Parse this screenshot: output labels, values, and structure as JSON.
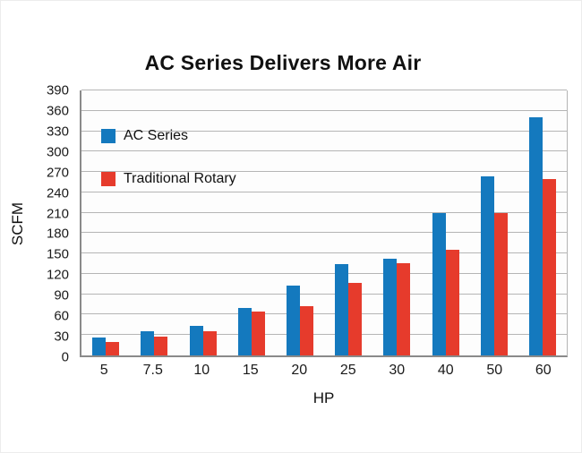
{
  "chart_data": {
    "type": "bar",
    "title": "AC Series Delivers More Air",
    "xlabel": "HP",
    "ylabel": "SCFM",
    "categories": [
      "5",
      "7.5",
      "10",
      "15",
      "20",
      "25",
      "30",
      "40",
      "50",
      "60"
    ],
    "series": [
      {
        "name": "AC Series",
        "color": "#1479be",
        "values": [
          26,
          35,
          43,
          70,
          103,
          135,
          142,
          210,
          263,
          350
        ]
      },
      {
        "name": "Traditional Rotary",
        "color": "#e63b2c",
        "values": [
          20,
          28,
          36,
          64,
          72,
          107,
          136,
          155,
          210,
          260
        ]
      }
    ],
    "ylim": [
      0,
      390
    ],
    "ytick_step": 30,
    "y_ticks": [
      0,
      30,
      60,
      90,
      120,
      150,
      180,
      210,
      240,
      270,
      300,
      330,
      360,
      390
    ],
    "grid": "horizontal",
    "legend_position": "top-left-inside"
  }
}
